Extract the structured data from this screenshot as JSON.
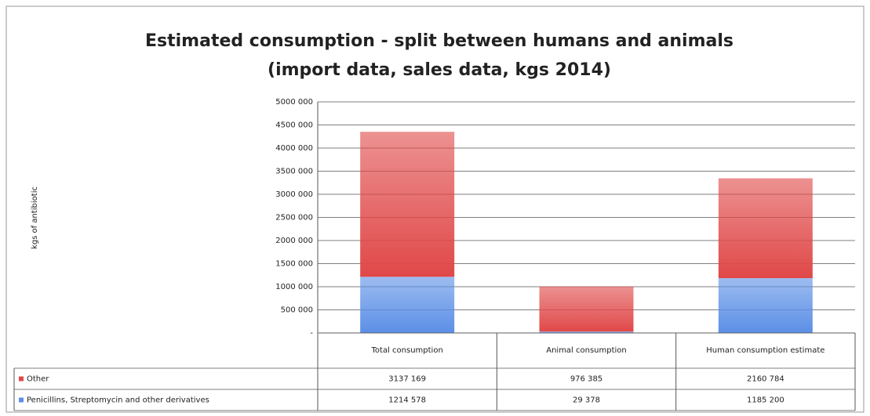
{
  "chart_data": {
    "type": "bar",
    "stacked": true,
    "title": "Estimated consumption - split between humans and animals",
    "subtitle": "(import data, sales data, kgs 2014)",
    "y_label": "kgs of antibiotic",
    "categories": [
      "Total consumption",
      "Animal consumption",
      "Human consumption estimate"
    ],
    "series": [
      {
        "name": "Penicillins, Streptomycin and other derivatives",
        "color": "#5b8fe6",
        "values": [
          1214578,
          29378,
          1185200
        ],
        "value_labels": [
          "1214 578",
          "29 378",
          "1185 200"
        ]
      },
      {
        "name": "Other",
        "color": "#e04848",
        "values": [
          3137169,
          976385,
          2160784
        ],
        "value_labels": [
          "3137 169",
          "976 385",
          "2160 784"
        ]
      }
    ],
    "ylim": [
      0,
      5000000
    ],
    "yticks": [
      {
        "value": 0,
        "label": "-"
      },
      {
        "value": 500000,
        "label": "500 000"
      },
      {
        "value": 1000000,
        "label": "1000 000"
      },
      {
        "value": 1500000,
        "label": "1500 000"
      },
      {
        "value": 2000000,
        "label": "2000 000"
      },
      {
        "value": 2500000,
        "label": "2500 000"
      },
      {
        "value": 3000000,
        "label": "3000 000"
      },
      {
        "value": 3500000,
        "label": "3500 000"
      },
      {
        "value": 4000000,
        "label": "4000 000"
      },
      {
        "value": 4500000,
        "label": "4500 000"
      },
      {
        "value": 5000000,
        "label": "5000 000"
      }
    ],
    "grid": true
  }
}
